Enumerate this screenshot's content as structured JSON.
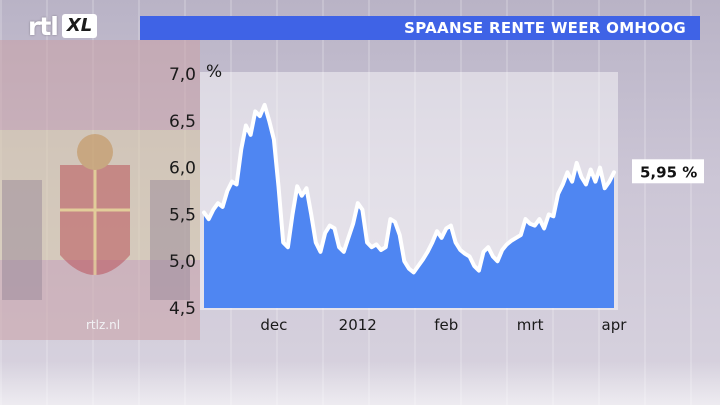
{
  "channel": {
    "logo_rtl": "rtl",
    "logo_xl": "XL",
    "website": "rtlz.nl"
  },
  "headline": "SPAANSE RENTE WEER OMHOOG",
  "colors": {
    "title_bar": "#3f63e6",
    "area_fill": "#4f86f2",
    "line": "#ffffff"
  },
  "chart_data": {
    "type": "area",
    "title": "SPAANSE RENTE WEER OMHOOG",
    "ylabel": "%",
    "ylim": [
      4.5,
      7.0
    ],
    "yticks": [
      "7,0",
      "6,5",
      "6,0",
      "5,5",
      "5,0",
      "4,5"
    ],
    "yticks_values": [
      7.0,
      6.5,
      6.0,
      5.5,
      5.0,
      4.5
    ],
    "xticks": [
      "dec",
      "2012",
      "feb",
      "mrt",
      "apr"
    ],
    "xticks_index": [
      15,
      33,
      52,
      70,
      88
    ],
    "last_value_label": "5,95 %",
    "grid": false,
    "series": [
      {
        "values": [
          5.52,
          5.45,
          5.55,
          5.62,
          5.58,
          5.75,
          5.85,
          5.82,
          6.2,
          6.45,
          6.35,
          6.6,
          6.55,
          6.67,
          6.5,
          6.3,
          5.8,
          5.2,
          5.15,
          5.5,
          5.8,
          5.7,
          5.78,
          5.5,
          5.2,
          5.1,
          5.3,
          5.38,
          5.35,
          5.15,
          5.1,
          5.25,
          5.4,
          5.62,
          5.55,
          5.2,
          5.15,
          5.18,
          5.12,
          5.15,
          5.45,
          5.42,
          5.28,
          5.0,
          4.92,
          4.88,
          4.95,
          5.02,
          5.1,
          5.2,
          5.32,
          5.25,
          5.35,
          5.38,
          5.2,
          5.12,
          5.08,
          5.05,
          4.95,
          4.9,
          5.1,
          5.15,
          5.05,
          5.0,
          5.12,
          5.18,
          5.22,
          5.25,
          5.28,
          5.45,
          5.4,
          5.38,
          5.45,
          5.35,
          5.5,
          5.48,
          5.72,
          5.82,
          5.95,
          5.85,
          6.05,
          5.9,
          5.82,
          5.98,
          5.85,
          6.0,
          5.78,
          5.85,
          5.95
        ]
      }
    ]
  }
}
